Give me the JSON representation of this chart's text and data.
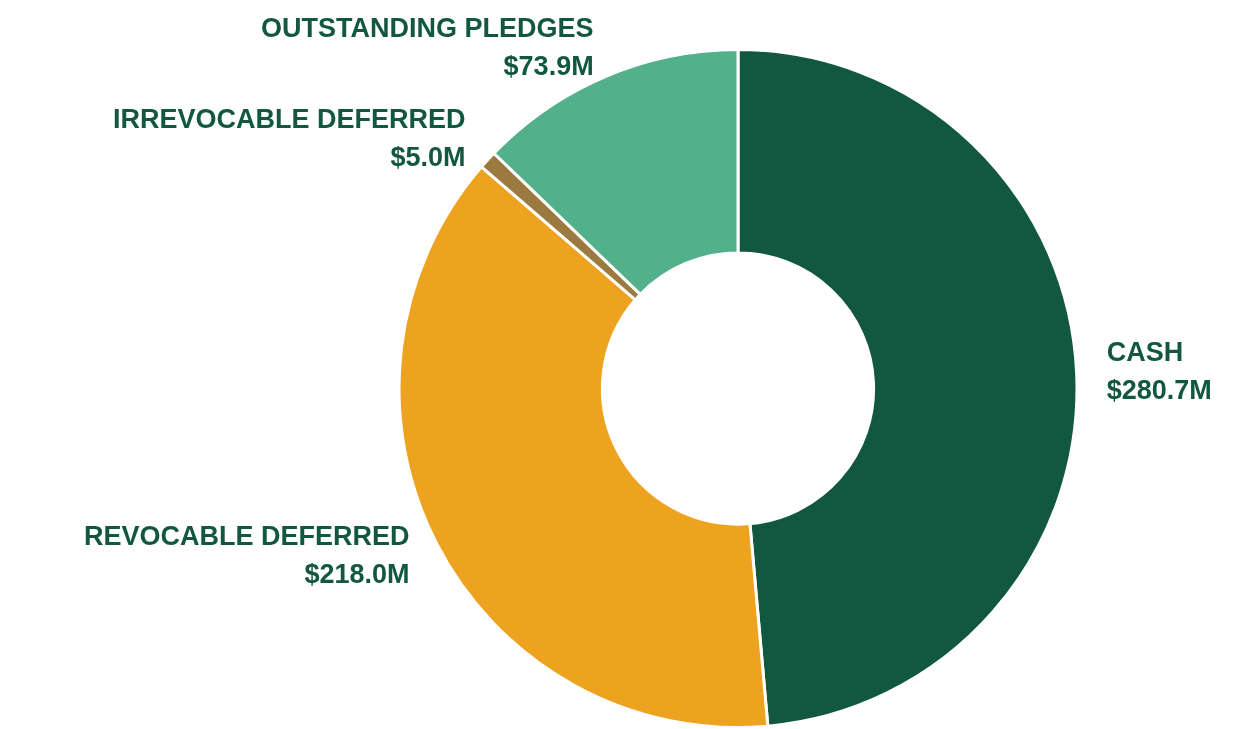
{
  "chart_data": {
    "type": "donut",
    "categories": [
      "CASH",
      "REVOCABLE DEFERRED",
      "IRREVOCABLE DEFERRED",
      "OUTSTANDING PLEDGES"
    ],
    "values": [
      280.7,
      218.0,
      5.0,
      73.9
    ],
    "colors": [
      "#12573f",
      "#eea320",
      "#9a7a3e",
      "#52b08a"
    ],
    "value_labels": [
      "$280.7M",
      "$218.0M",
      "$5.0M",
      "$73.9M"
    ],
    "legend": false
  }
}
